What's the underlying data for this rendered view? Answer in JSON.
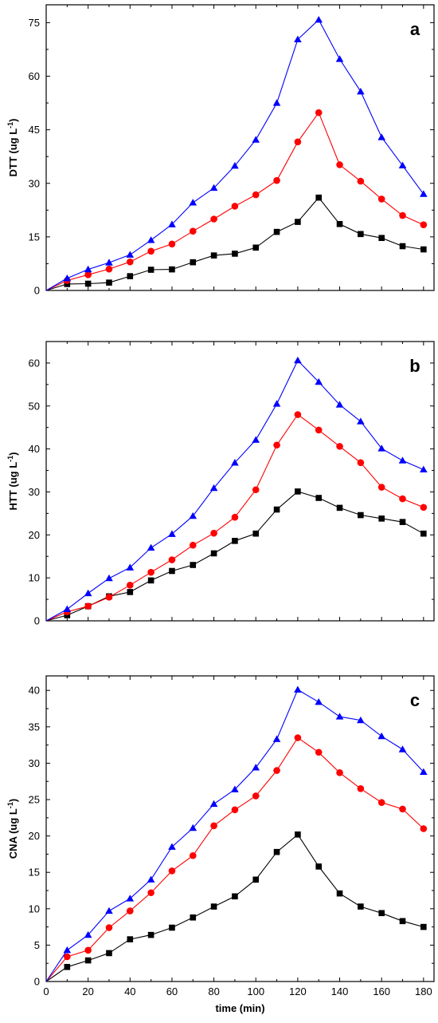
{
  "chart_data": [
    {
      "type": "line",
      "panel_label": "a",
      "ylabel_main": "DTT (ug L",
      "ylabel_sup": "-1",
      "ylabel_end": ")",
      "xlabel": "",
      "xlim": [
        0,
        185
      ],
      "ylim": [
        0,
        80
      ],
      "yticks": [
        0,
        15,
        30,
        45,
        60,
        75
      ],
      "xticks": [
        0,
        20,
        40,
        60,
        80,
        100,
        120,
        140,
        160,
        180
      ],
      "series": [
        {
          "marker": "square",
          "color": "#000000",
          "x": [
            0,
            10,
            20,
            30,
            40,
            50,
            60,
            70,
            80,
            90,
            100,
            110,
            120,
            130,
            140,
            150,
            160,
            170,
            180
          ],
          "y": [
            0,
            1.8,
            1.9,
            2.2,
            4.0,
            5.8,
            5.9,
            7.9,
            9.8,
            10.3,
            12.0,
            16.4,
            19.2,
            26.0,
            18.6,
            15.8,
            14.7,
            12.4,
            11.5
          ]
        },
        {
          "marker": "circle",
          "color": "#ff0000",
          "x": [
            0,
            10,
            20,
            30,
            40,
            50,
            60,
            70,
            80,
            90,
            100,
            110,
            120,
            130,
            140,
            150,
            160,
            170,
            180
          ],
          "y": [
            0,
            2.8,
            4.4,
            6.0,
            8.0,
            11.0,
            13.0,
            16.6,
            20.0,
            23.6,
            26.8,
            30.8,
            41.6,
            49.8,
            35.2,
            30.6,
            25.6,
            21.0,
            18.4
          ]
        },
        {
          "marker": "triangle",
          "color": "#0000ff",
          "x": [
            0,
            10,
            20,
            30,
            40,
            50,
            60,
            70,
            80,
            90,
            100,
            110,
            120,
            130,
            140,
            150,
            160,
            170,
            180
          ],
          "y": [
            0,
            3.4,
            5.9,
            7.8,
            10.0,
            14.1,
            18.5,
            24.6,
            28.7,
            34.9,
            42.2,
            52.5,
            70.3,
            75.8,
            64.8,
            55.7,
            42.9,
            35.0,
            27.0
          ]
        }
      ]
    },
    {
      "type": "line",
      "panel_label": "b",
      "ylabel_main": "HTT (ug L",
      "ylabel_sup": "-1",
      "ylabel_end": ")",
      "xlabel": "",
      "xlim": [
        0,
        185
      ],
      "ylim": [
        0,
        65
      ],
      "yticks": [
        0,
        10,
        20,
        30,
        40,
        50,
        60
      ],
      "xticks": [
        0,
        20,
        40,
        60,
        80,
        100,
        120,
        140,
        160,
        180
      ],
      "series": [
        {
          "marker": "square",
          "color": "#000000",
          "x": [
            0,
            10,
            20,
            30,
            40,
            50,
            60,
            70,
            80,
            90,
            100,
            110,
            120,
            130,
            140,
            150,
            160,
            170,
            180
          ],
          "y": [
            0,
            1.3,
            3.4,
            5.7,
            6.7,
            9.4,
            11.6,
            13.0,
            15.7,
            18.6,
            20.3,
            25.9,
            30.1,
            28.6,
            26.3,
            24.6,
            23.8,
            23.0,
            20.3
          ]
        },
        {
          "marker": "circle",
          "color": "#ff0000",
          "x": [
            0,
            10,
            20,
            30,
            40,
            50,
            60,
            70,
            80,
            90,
            100,
            110,
            120,
            130,
            140,
            150,
            160,
            170,
            180
          ],
          "y": [
            0,
            2.1,
            3.4,
            5.5,
            8.3,
            11.3,
            14.2,
            17.6,
            20.4,
            24.1,
            30.5,
            40.9,
            48.0,
            44.4,
            40.6,
            36.8,
            31.1,
            28.4,
            26.4
          ]
        },
        {
          "marker": "triangle",
          "color": "#0000ff",
          "x": [
            0,
            10,
            20,
            30,
            40,
            50,
            60,
            70,
            80,
            90,
            100,
            110,
            120,
            130,
            140,
            150,
            160,
            170,
            180
          ],
          "y": [
            0,
            2.7,
            6.4,
            9.9,
            12.4,
            17.0,
            20.2,
            24.4,
            30.9,
            36.8,
            42.1,
            50.5,
            60.6,
            55.6,
            50.3,
            46.4,
            40.1,
            37.3,
            35.2
          ]
        }
      ]
    },
    {
      "type": "line",
      "panel_label": "c",
      "ylabel_main": "CNA (ug L",
      "ylabel_sup": "-1",
      "ylabel_end": ")",
      "xlabel": "time (min)",
      "xlim": [
        0,
        185
      ],
      "ylim": [
        0,
        42
      ],
      "yticks": [
        0,
        5,
        10,
        15,
        20,
        25,
        30,
        35,
        40
      ],
      "xticks": [
        0,
        20,
        40,
        60,
        80,
        100,
        120,
        140,
        160,
        180
      ],
      "series": [
        {
          "marker": "square",
          "color": "#000000",
          "x": [
            0,
            10,
            20,
            30,
            40,
            50,
            60,
            70,
            80,
            90,
            100,
            110,
            120,
            130,
            140,
            150,
            160,
            170,
            180
          ],
          "y": [
            0,
            2.0,
            2.9,
            3.9,
            5.8,
            6.4,
            7.4,
            8.8,
            10.3,
            11.7,
            14.0,
            17.8,
            20.2,
            15.8,
            12.1,
            10.3,
            9.4,
            8.3,
            7.5
          ]
        },
        {
          "marker": "circle",
          "color": "#ff0000",
          "x": [
            0,
            10,
            20,
            30,
            40,
            50,
            60,
            70,
            80,
            90,
            100,
            110,
            120,
            130,
            140,
            150,
            160,
            170,
            180
          ],
          "y": [
            0,
            3.4,
            4.3,
            7.4,
            9.7,
            12.2,
            15.2,
            17.3,
            21.4,
            23.6,
            25.5,
            29.0,
            33.5,
            31.5,
            28.7,
            26.5,
            24.6,
            23.7,
            21.0
          ]
        },
        {
          "marker": "triangle",
          "color": "#0000ff",
          "x": [
            0,
            10,
            20,
            30,
            40,
            50,
            60,
            70,
            80,
            90,
            100,
            110,
            120,
            130,
            140,
            150,
            160,
            170,
            180
          ],
          "y": [
            0,
            4.3,
            6.4,
            9.7,
            11.4,
            14.0,
            18.5,
            21.1,
            24.4,
            26.4,
            29.4,
            33.3,
            40.1,
            38.4,
            36.4,
            35.9,
            33.7,
            31.9,
            28.8
          ]
        }
      ]
    }
  ]
}
